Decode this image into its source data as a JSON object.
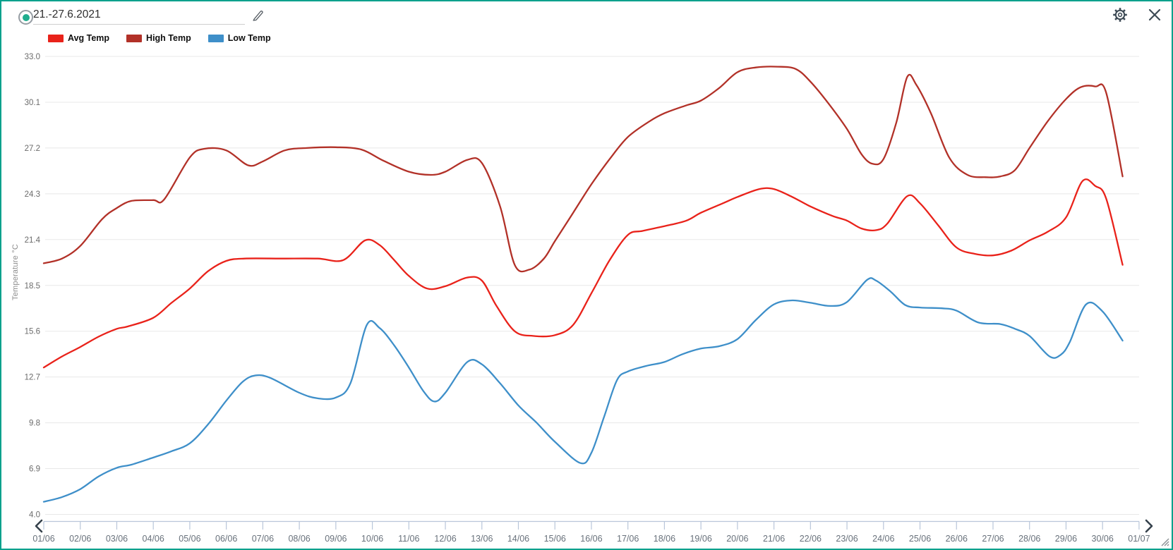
{
  "window": {
    "border_color": "#04a18c",
    "background": "#ffffff"
  },
  "header": {
    "date_range_value": "21.-27.6.2021",
    "icon_color": "#3d4a55",
    "radio_color": "#1fad8e",
    "edit_icon": "pencil-icon",
    "settings_icon": "gear-icon",
    "close_icon": "close-icon"
  },
  "legend": {
    "series": [
      {
        "label": "Avg Temp",
        "color": "#e9221a"
      },
      {
        "label": "High Temp",
        "color": "#b23128"
      },
      {
        "label": "Low Temp",
        "color": "#3e8fc9"
      }
    ]
  },
  "nav": {
    "prev": "previous-period",
    "next": "next-period"
  },
  "chart_data": {
    "type": "line",
    "title": "",
    "xlabel": "",
    "ylabel": "Temperature °C",
    "ylim": [
      4.0,
      33.0
    ],
    "grid": true,
    "grid_color": "#e8e8e8",
    "axis_color": "#b9c6da",
    "tick_label_color": "#68717b",
    "y_tick_labels": [
      "33.0",
      "30.1",
      "27.2",
      "24.3",
      "21.4",
      "18.5",
      "15.6",
      "12.7",
      "9.8",
      "6.9",
      "4.0"
    ],
    "x_tick_labels": [
      "01/06",
      "02/06",
      "03/06",
      "04/06",
      "05/06",
      "06/06",
      "07/06",
      "08/06",
      "09/06",
      "10/06",
      "11/06",
      "12/06",
      "13/06",
      "14/06",
      "15/06",
      "16/06",
      "17/06",
      "18/06",
      "19/06",
      "20/06",
      "21/06",
      "22/06",
      "23/06",
      "24/06",
      "25/06",
      "26/06",
      "27/06",
      "28/06",
      "29/06",
      "30/06",
      "01/07"
    ],
    "x_unit": "day-of-june",
    "series": [
      {
        "name": "High Temp",
        "color": "#b23128",
        "points": [
          [
            1,
            19.9
          ],
          [
            1.5,
            20.2
          ],
          [
            2,
            21.0
          ],
          [
            2.6,
            22.7
          ],
          [
            3,
            23.4
          ],
          [
            3.4,
            23.85
          ],
          [
            4,
            23.9
          ],
          [
            4.3,
            23.95
          ],
          [
            5,
            26.6
          ],
          [
            5.4,
            27.15
          ],
          [
            6,
            27.05
          ],
          [
            6.6,
            26.1
          ],
          [
            7,
            26.35
          ],
          [
            7.6,
            27.05
          ],
          [
            8.2,
            27.2
          ],
          [
            9,
            27.25
          ],
          [
            9.7,
            27.1
          ],
          [
            10.3,
            26.4
          ],
          [
            11,
            25.7
          ],
          [
            11.6,
            25.5
          ],
          [
            12,
            25.7
          ],
          [
            12.6,
            26.45
          ],
          [
            13,
            26.25
          ],
          [
            13.5,
            23.5
          ],
          [
            13.9,
            19.8
          ],
          [
            14.3,
            19.5
          ],
          [
            14.7,
            20.2
          ],
          [
            15,
            21.3
          ],
          [
            15.5,
            23.1
          ],
          [
            16,
            24.9
          ],
          [
            16.5,
            26.5
          ],
          [
            17,
            27.9
          ],
          [
            17.6,
            28.9
          ],
          [
            18,
            29.4
          ],
          [
            18.6,
            29.9
          ],
          [
            19,
            30.2
          ],
          [
            19.5,
            31.0
          ],
          [
            20,
            32.0
          ],
          [
            20.5,
            32.3
          ],
          [
            21.1,
            32.35
          ],
          [
            21.6,
            32.2
          ],
          [
            22,
            31.4
          ],
          [
            22.5,
            30.0
          ],
          [
            23,
            28.4
          ],
          [
            23.4,
            26.8
          ],
          [
            23.7,
            26.2
          ],
          [
            24,
            26.5
          ],
          [
            24.35,
            28.8
          ],
          [
            24.65,
            31.7
          ],
          [
            24.9,
            31.2
          ],
          [
            25.3,
            29.4
          ],
          [
            25.8,
            26.6
          ],
          [
            26.3,
            25.5
          ],
          [
            26.8,
            25.35
          ],
          [
            27.2,
            25.4
          ],
          [
            27.6,
            25.8
          ],
          [
            28,
            27.2
          ],
          [
            28.5,
            28.9
          ],
          [
            29,
            30.3
          ],
          [
            29.4,
            31.05
          ],
          [
            29.8,
            31.1
          ],
          [
            30.1,
            30.7
          ],
          [
            30.55,
            25.4
          ]
        ]
      },
      {
        "name": "Avg Temp",
        "color": "#e9221a",
        "points": [
          [
            1,
            13.3
          ],
          [
            1.5,
            14.0
          ],
          [
            2,
            14.6
          ],
          [
            2.5,
            15.25
          ],
          [
            3,
            15.75
          ],
          [
            3.3,
            15.9
          ],
          [
            4,
            16.45
          ],
          [
            4.5,
            17.4
          ],
          [
            5,
            18.3
          ],
          [
            5.5,
            19.4
          ],
          [
            6,
            20.05
          ],
          [
            6.5,
            20.2
          ],
          [
            7.5,
            20.2
          ],
          [
            8.5,
            20.2
          ],
          [
            9.2,
            20.1
          ],
          [
            9.8,
            21.35
          ],
          [
            10.2,
            21.05
          ],
          [
            10.6,
            20.1
          ],
          [
            11,
            19.1
          ],
          [
            11.5,
            18.3
          ],
          [
            12,
            18.45
          ],
          [
            12.6,
            19.0
          ],
          [
            13,
            18.8
          ],
          [
            13.4,
            17.2
          ],
          [
            13.9,
            15.6
          ],
          [
            14.4,
            15.3
          ],
          [
            15,
            15.35
          ],
          [
            15.5,
            16.0
          ],
          [
            16,
            18.0
          ],
          [
            16.5,
            20.1
          ],
          [
            17,
            21.7
          ],
          [
            17.4,
            21.95
          ],
          [
            18,
            22.25
          ],
          [
            18.6,
            22.6
          ],
          [
            19,
            23.1
          ],
          [
            19.6,
            23.7
          ],
          [
            20,
            24.1
          ],
          [
            20.6,
            24.6
          ],
          [
            21,
            24.6
          ],
          [
            21.5,
            24.1
          ],
          [
            22,
            23.5
          ],
          [
            22.6,
            22.9
          ],
          [
            23,
            22.6
          ],
          [
            23.4,
            22.1
          ],
          [
            23.8,
            22.0
          ],
          [
            24.1,
            22.4
          ],
          [
            24.65,
            24.15
          ],
          [
            25,
            23.7
          ],
          [
            25.5,
            22.3
          ],
          [
            26,
            20.9
          ],
          [
            26.5,
            20.5
          ],
          [
            27,
            20.4
          ],
          [
            27.5,
            20.7
          ],
          [
            28,
            21.35
          ],
          [
            28.5,
            21.9
          ],
          [
            29,
            22.8
          ],
          [
            29.45,
            25.1
          ],
          [
            29.8,
            24.8
          ],
          [
            30.1,
            24.0
          ],
          [
            30.55,
            19.8
          ]
        ]
      },
      {
        "name": "Low Temp",
        "color": "#3e8fc9",
        "points": [
          [
            1,
            4.8
          ],
          [
            1.5,
            5.1
          ],
          [
            2,
            5.6
          ],
          [
            2.5,
            6.4
          ],
          [
            3,
            6.95
          ],
          [
            3.4,
            7.15
          ],
          [
            4,
            7.6
          ],
          [
            4.5,
            8.0
          ],
          [
            5,
            8.5
          ],
          [
            5.5,
            9.7
          ],
          [
            6,
            11.2
          ],
          [
            6.45,
            12.4
          ],
          [
            6.8,
            12.8
          ],
          [
            7.2,
            12.65
          ],
          [
            8,
            11.7
          ],
          [
            8.5,
            11.35
          ],
          [
            9,
            11.4
          ],
          [
            9.4,
            12.3
          ],
          [
            9.85,
            16.0
          ],
          [
            10.2,
            15.8
          ],
          [
            10.6,
            14.7
          ],
          [
            11,
            13.3
          ],
          [
            11.4,
            11.8
          ],
          [
            11.7,
            11.15
          ],
          [
            12,
            11.7
          ],
          [
            12.6,
            13.65
          ],
          [
            13,
            13.5
          ],
          [
            13.5,
            12.3
          ],
          [
            14,
            10.9
          ],
          [
            14.5,
            9.8
          ],
          [
            15,
            8.6
          ],
          [
            15.7,
            7.25
          ],
          [
            16,
            7.9
          ],
          [
            16.35,
            10.2
          ],
          [
            16.7,
            12.5
          ],
          [
            17,
            13.05
          ],
          [
            17.5,
            13.4
          ],
          [
            18,
            13.65
          ],
          [
            18.5,
            14.15
          ],
          [
            19,
            14.5
          ],
          [
            19.5,
            14.65
          ],
          [
            20,
            15.1
          ],
          [
            20.5,
            16.3
          ],
          [
            21,
            17.3
          ],
          [
            21.5,
            17.55
          ],
          [
            22,
            17.4
          ],
          [
            22.55,
            17.2
          ],
          [
            23,
            17.45
          ],
          [
            23.55,
            18.85
          ],
          [
            23.8,
            18.8
          ],
          [
            24.2,
            18.1
          ],
          [
            24.6,
            17.25
          ],
          [
            25,
            17.1
          ],
          [
            25.6,
            17.05
          ],
          [
            26,
            16.9
          ],
          [
            26.6,
            16.15
          ],
          [
            27.2,
            16.05
          ],
          [
            27.6,
            15.75
          ],
          [
            28,
            15.3
          ],
          [
            28.55,
            14.0
          ],
          [
            28.85,
            14.1
          ],
          [
            29.1,
            14.9
          ],
          [
            29.55,
            17.3
          ],
          [
            30,
            16.85
          ],
          [
            30.55,
            15.0
          ]
        ]
      }
    ],
    "legend_position": "top-left"
  }
}
